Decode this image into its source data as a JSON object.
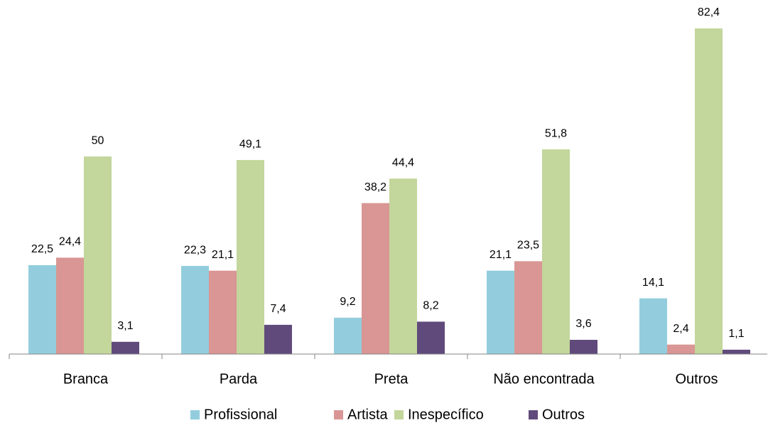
{
  "chart_data": {
    "type": "bar",
    "categories": [
      "Branca",
      "Parda",
      "Preta",
      "Não encontrada",
      "Outros"
    ],
    "series": [
      {
        "name": "Profissional",
        "color": "#93cddd",
        "values": [
          22.5,
          22.3,
          9.2,
          21.1,
          14.1
        ],
        "value_labels": [
          "22,5",
          "22,3",
          "9,2",
          "21,1",
          "14,1"
        ]
      },
      {
        "name": "Artista",
        "color": "#d99694",
        "values": [
          24.4,
          21.1,
          38.2,
          23.5,
          2.4
        ],
        "value_labels": [
          "24,4",
          "21,1",
          "38,2",
          "23,5",
          "2,4"
        ]
      },
      {
        "name": "Inespecífico",
        "color": "#c3d69b",
        "values": [
          50,
          49.1,
          44.4,
          51.8,
          82.4
        ],
        "value_labels": [
          "50",
          "49,1",
          "44,4",
          "51,8",
          "82,4"
        ]
      },
      {
        "name": "Outros",
        "color": "#604a7b",
        "values": [
          3.1,
          7.4,
          8.2,
          3.6,
          1.1
        ],
        "value_labels": [
          "3,1",
          "7,4",
          "8,2",
          "3,6",
          "1,1"
        ]
      }
    ],
    "legend": "bottom"
  }
}
